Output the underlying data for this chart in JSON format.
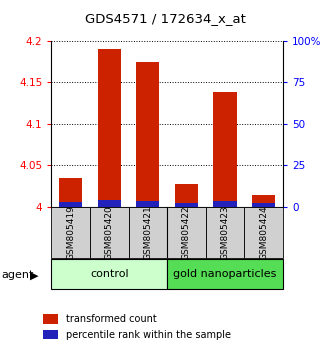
{
  "title": "GDS4571 / 172634_x_at",
  "samples": [
    "GSM805419",
    "GSM805420",
    "GSM805421",
    "GSM805422",
    "GSM805423",
    "GSM805424"
  ],
  "red_values": [
    4.035,
    4.19,
    4.175,
    4.028,
    4.138,
    4.015
  ],
  "blue_values_pct": [
    3.0,
    4.0,
    3.5,
    2.5,
    3.5,
    2.5
  ],
  "ylim_left": [
    4.0,
    4.2
  ],
  "ylim_right": [
    0,
    100
  ],
  "yticks_left": [
    4.0,
    4.05,
    4.1,
    4.15,
    4.2
  ],
  "yticks_right": [
    0,
    25,
    50,
    75,
    100
  ],
  "ytick_labels_left": [
    "4",
    "4.05",
    "4.1",
    "4.15",
    "4.2"
  ],
  "ytick_labels_right": [
    "0",
    "25",
    "50",
    "75",
    "100%"
  ],
  "groups": [
    {
      "label": "control",
      "span": [
        0,
        2
      ],
      "color": "#b3ffb3"
    },
    {
      "label": "gold nanoparticles",
      "span": [
        3,
        5
      ],
      "color": "#55dd55"
    }
  ],
  "agent_label": "agent",
  "legend_items": [
    {
      "color": "#cc2200",
      "label": "transformed count"
    },
    {
      "color": "#2222bb",
      "label": "percentile rank within the sample"
    }
  ],
  "bar_width": 0.6,
  "red_color": "#cc2200",
  "blue_color": "#2222bb",
  "bar_bottom": 4.0,
  "ctrl_color": "#ccffcc",
  "gold_color": "#55dd55",
  "gray_color": "#d0d0d0"
}
